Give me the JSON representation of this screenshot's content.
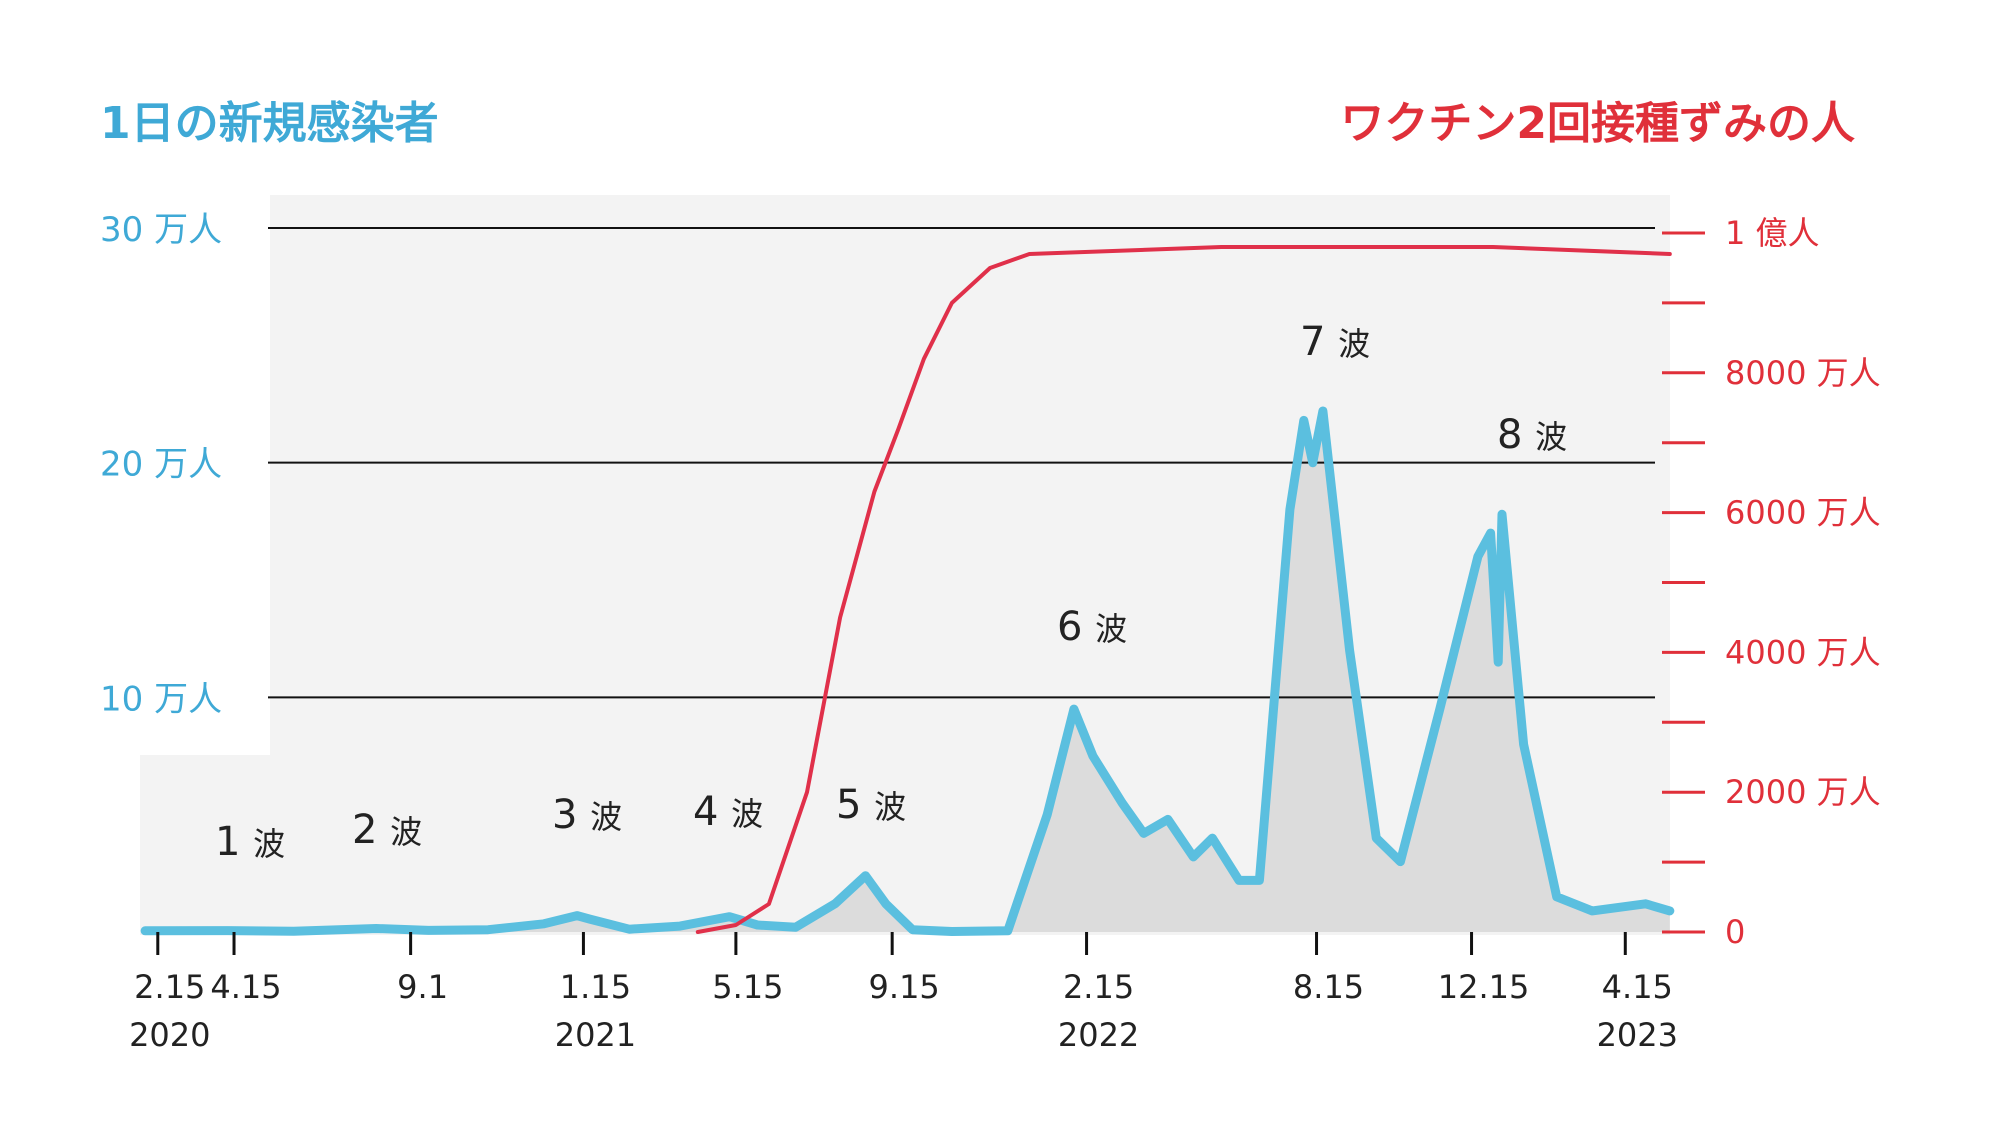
{
  "colors": {
    "infections": "#5bbfdf",
    "infections_fill": "#dcdcdc",
    "vaccination": "#e0304a",
    "left_axis_text": "#3fa9d6",
    "right_axis_text": "#e0303a",
    "background_panel": "#f3f3f3",
    "gridline": "#111111"
  },
  "chart_data": {
    "type": "line",
    "left_title": "1日の新規感染者",
    "right_title": "ワクチン2回接種ずみの人",
    "left_axis": {
      "ylim": [
        0,
        300000
      ],
      "ticks": [
        {
          "value": 100000,
          "label": "10 万人"
        },
        {
          "value": 200000,
          "label": "20 万人"
        },
        {
          "value": 300000,
          "label": "30 万人"
        }
      ]
    },
    "right_axis": {
      "ylim": [
        0,
        100000000
      ],
      "ticks": [
        {
          "value": 0,
          "label": "0"
        },
        {
          "value": 20000000,
          "label": "2000 万人"
        },
        {
          "value": 40000000,
          "label": "4000 万人"
        },
        {
          "value": 60000000,
          "label": "6000 万人"
        },
        {
          "value": 80000000,
          "label": "8000 万人"
        },
        {
          "value": 100000000,
          "label": "1 億人"
        }
      ],
      "minor_ticks": [
        10000000,
        30000000,
        50000000,
        70000000,
        90000000
      ]
    },
    "x_axis": {
      "range": [
        "2020-02-01",
        "2023-06-01"
      ],
      "ticks": [
        {
          "date": "2020-02-15",
          "label": "2.15",
          "year": "2020"
        },
        {
          "date": "2020-04-15",
          "label": "4.15",
          "year": ""
        },
        {
          "date": "2020-09-01",
          "label": "9.1",
          "year": ""
        },
        {
          "date": "2021-01-15",
          "label": "1.15",
          "year": "2021"
        },
        {
          "date": "2021-05-15",
          "label": "5.15",
          "year": ""
        },
        {
          "date": "2021-09-15",
          "label": "9.15",
          "year": ""
        },
        {
          "date": "2022-02-15",
          "label": "2.15",
          "year": "2022"
        },
        {
          "date": "2022-08-15",
          "label": "8.15",
          "year": ""
        },
        {
          "date": "2022-12-15",
          "label": "12.15",
          "year": ""
        },
        {
          "date": "2023-04-15",
          "label": "4.15",
          "year": "2023"
        }
      ]
    },
    "grid": "horizontal lines at 10, 20, 30 万人",
    "waves": [
      {
        "num": "1",
        "word": "波"
      },
      {
        "num": "2",
        "word": "波"
      },
      {
        "num": "3",
        "word": "波"
      },
      {
        "num": "4",
        "word": "波"
      },
      {
        "num": "5",
        "word": "波"
      },
      {
        "num": "6",
        "word": "波"
      },
      {
        "num": "7",
        "word": "波"
      },
      {
        "num": "8",
        "word": "波"
      }
    ],
    "series": [
      {
        "axis": "left",
        "points": [
          [
            "2020-02-05",
            500
          ],
          [
            "2020-04-10",
            600
          ],
          [
            "2020-06-01",
            300
          ],
          [
            "2020-08-05",
            1500
          ],
          [
            "2020-09-15",
            700
          ],
          [
            "2020-11-01",
            1000
          ],
          [
            "2020-12-15",
            3500
          ],
          [
            "2021-01-10",
            7000
          ],
          [
            "2021-01-20",
            5500
          ],
          [
            "2021-02-20",
            1200
          ],
          [
            "2021-04-01",
            2500
          ],
          [
            "2021-05-10",
            6500
          ],
          [
            "2021-06-01",
            3000
          ],
          [
            "2021-07-01",
            2000
          ],
          [
            "2021-08-01",
            12000
          ],
          [
            "2021-08-25",
            24000
          ],
          [
            "2021-09-10",
            12000
          ],
          [
            "2021-10-01",
            1000
          ],
          [
            "2021-11-01",
            200
          ],
          [
            "2021-12-15",
            500
          ],
          [
            "2022-01-15",
            50000
          ],
          [
            "2022-02-05",
            95000
          ],
          [
            "2022-02-20",
            75000
          ],
          [
            "2022-03-15",
            55000
          ],
          [
            "2022-04-01",
            42000
          ],
          [
            "2022-04-20",
            48000
          ],
          [
            "2022-05-10",
            32000
          ],
          [
            "2022-05-25",
            40000
          ],
          [
            "2022-06-15",
            22000
          ],
          [
            "2022-07-01",
            22000
          ],
          [
            "2022-07-25",
            180000
          ],
          [
            "2022-08-05",
            218000
          ],
          [
            "2022-08-12",
            200000
          ],
          [
            "2022-08-20",
            222000
          ],
          [
            "2022-09-10",
            120000
          ],
          [
            "2022-10-01",
            40000
          ],
          [
            "2022-10-20",
            30000
          ],
          [
            "2022-11-20",
            95000
          ],
          [
            "2022-12-20",
            160000
          ],
          [
            "2022-12-30",
            170000
          ],
          [
            "2023-01-05",
            115000
          ],
          [
            "2023-01-08",
            178000
          ],
          [
            "2023-01-25",
            80000
          ],
          [
            "2023-02-20",
            15000
          ],
          [
            "2023-03-20",
            9000
          ],
          [
            "2023-05-01",
            12000
          ],
          [
            "2023-05-20",
            9000
          ]
        ]
      },
      {
        "axis": "right",
        "points": [
          [
            "2021-04-15",
            0
          ],
          [
            "2021-05-15",
            1000000
          ],
          [
            "2021-06-10",
            4000000
          ],
          [
            "2021-07-10",
            20000000
          ],
          [
            "2021-08-05",
            45000000
          ],
          [
            "2021-09-01",
            63000000
          ],
          [
            "2021-09-20",
            72000000
          ],
          [
            "2021-10-10",
            82000000
          ],
          [
            "2021-11-01",
            90000000
          ],
          [
            "2021-12-01",
            95000000
          ],
          [
            "2022-01-01",
            97000000
          ],
          [
            "2022-06-01",
            98000000
          ],
          [
            "2023-01-01",
            98000000
          ],
          [
            "2023-05-20",
            97000000
          ]
        ]
      }
    ]
  }
}
